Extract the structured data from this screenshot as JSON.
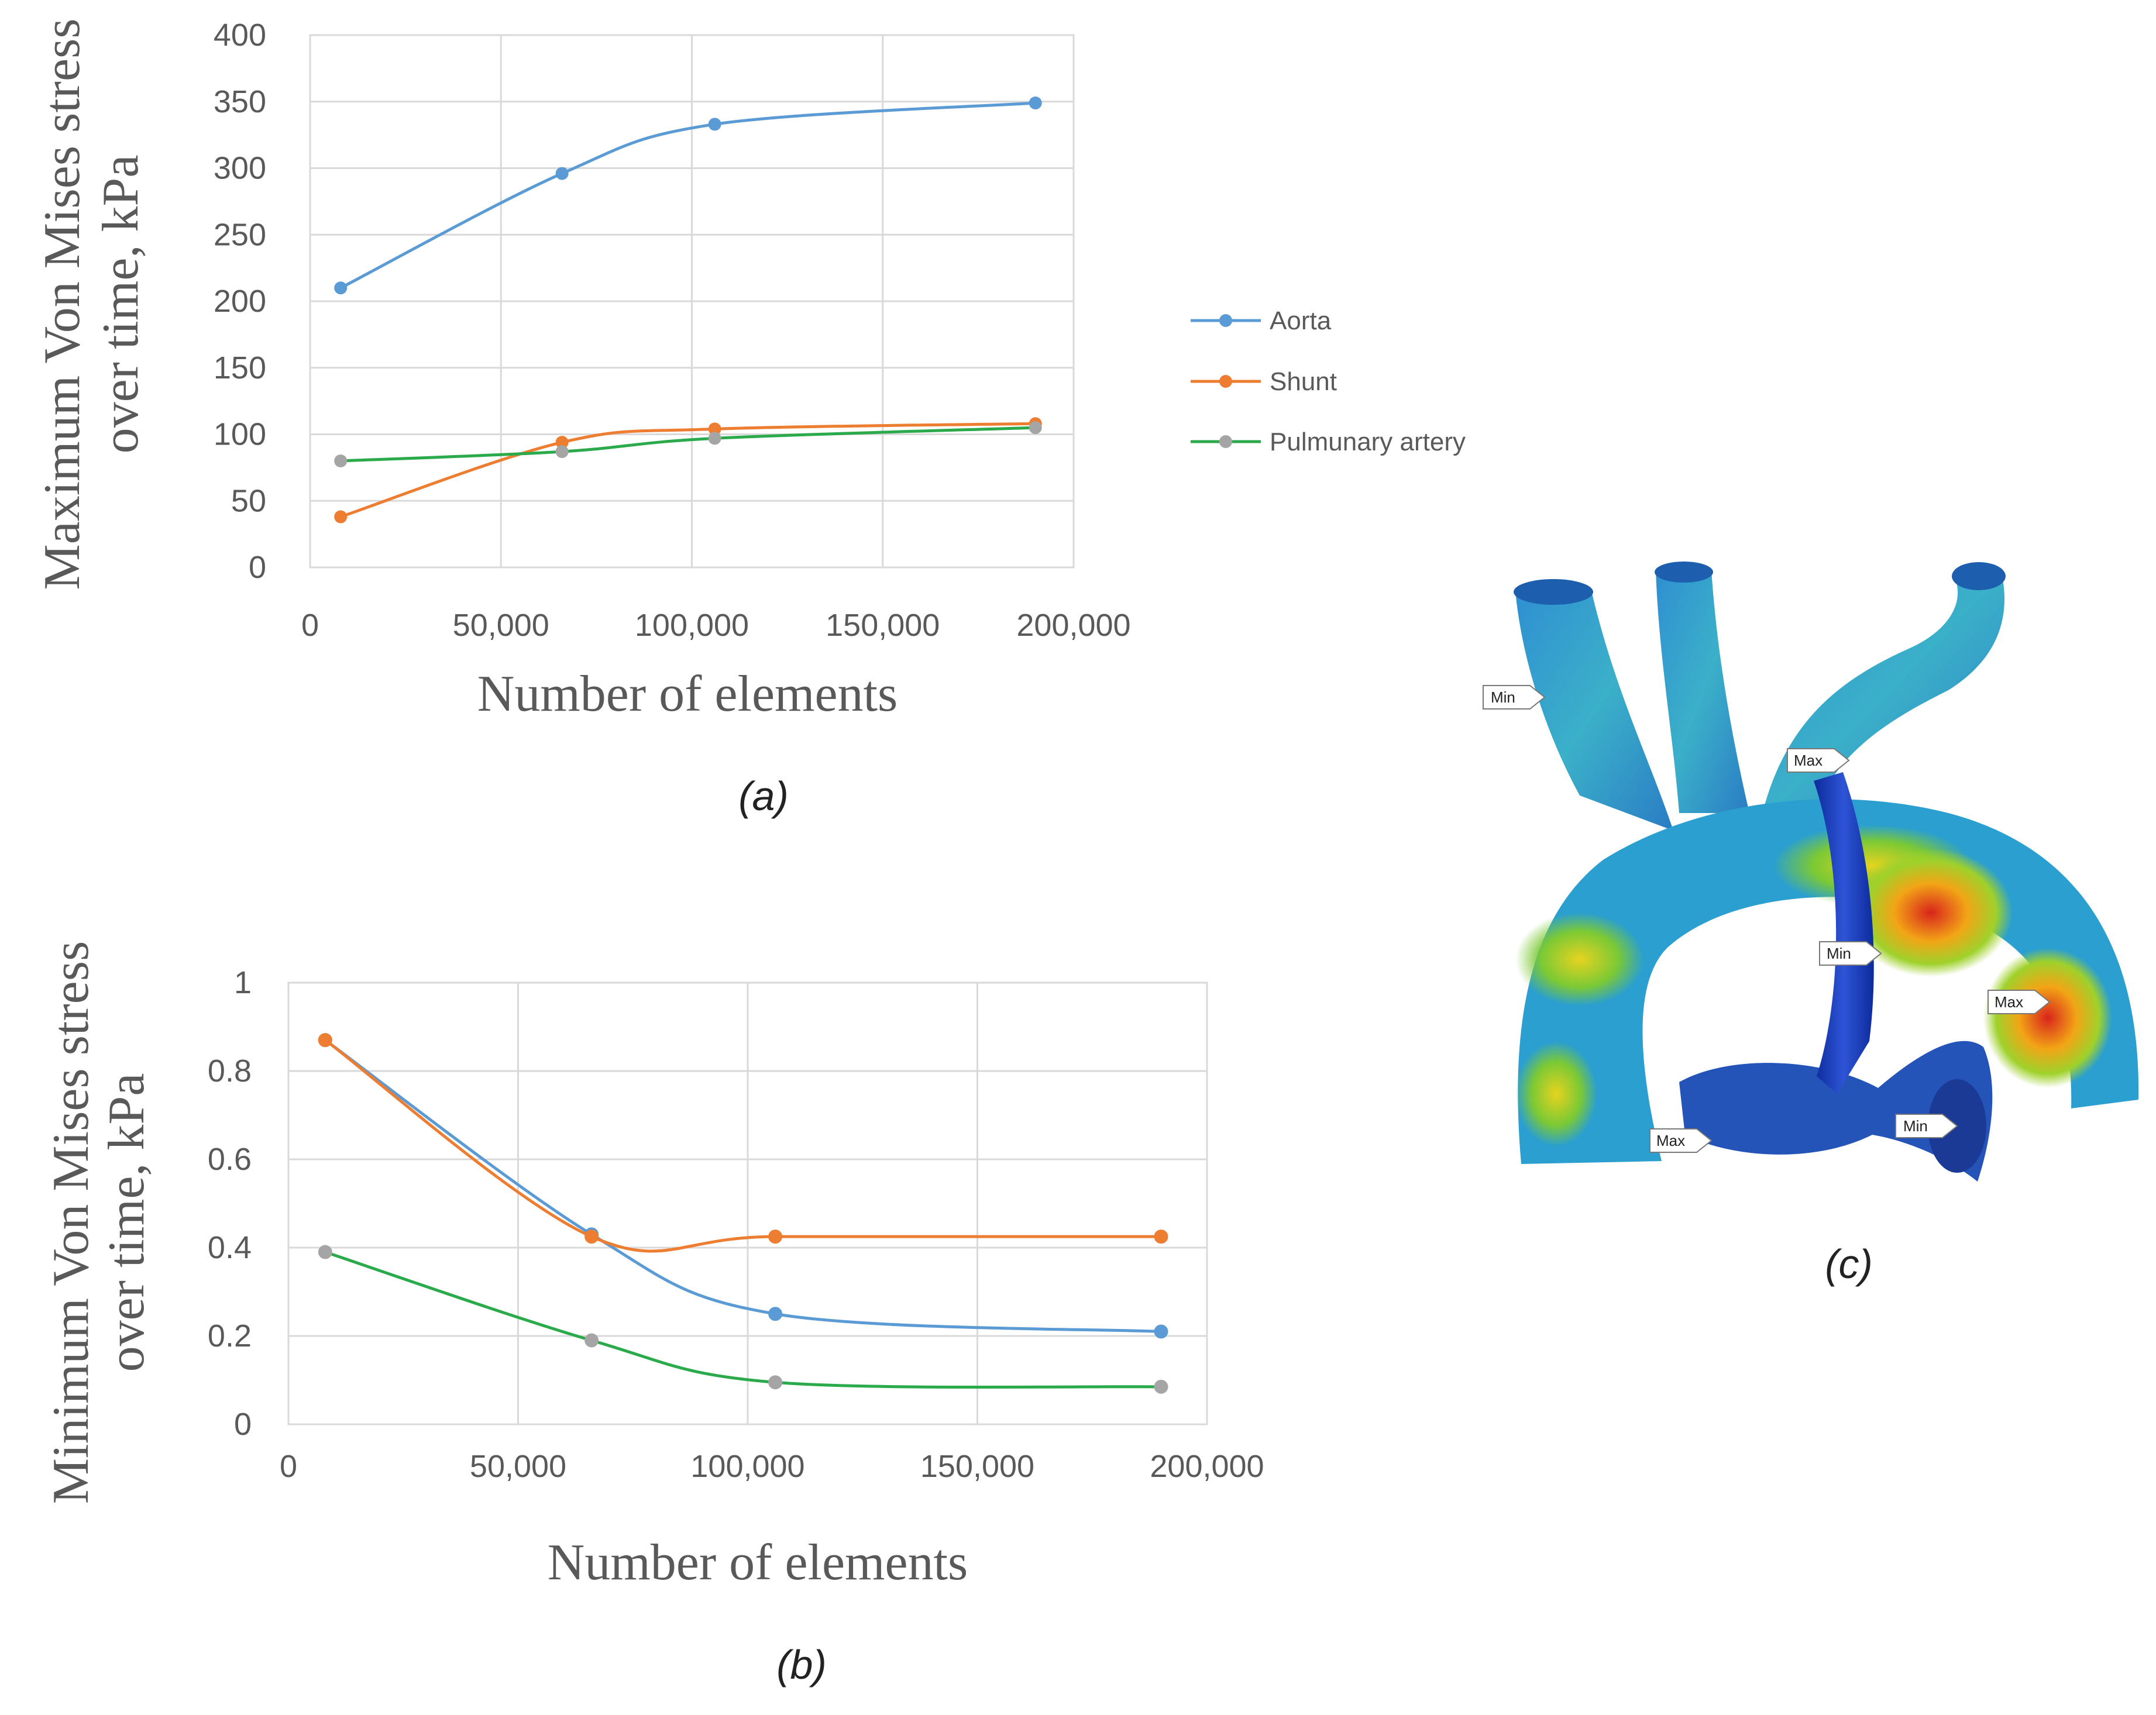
{
  "chart_data": [
    {
      "panel": "(a)",
      "type": "line",
      "title": "",
      "xlabel": "Number of elements",
      "ylabel_lines": [
        "Maximum Von Mises stress",
        "over time, kPa"
      ],
      "xlim": [
        0,
        200000
      ],
      "ylim": [
        0,
        400
      ],
      "xticks": [
        0,
        50000,
        100000,
        150000,
        200000
      ],
      "xtick_labels": [
        "0",
        "50,000",
        "100,000",
        "150,000",
        "200,000"
      ],
      "yticks": [
        0,
        50,
        100,
        150,
        200,
        250,
        300,
        350,
        400
      ],
      "ytick_labels": [
        "0",
        "50",
        "100",
        "150",
        "200",
        "250",
        "300",
        "350",
        "400"
      ],
      "grid": true,
      "legend_placement": "right",
      "series": [
        {
          "name": "Aorta",
          "x": [
            8000,
            66000,
            106000,
            190000
          ],
          "values": [
            210,
            296,
            333,
            349
          ]
        },
        {
          "name": "Shunt",
          "x": [
            8000,
            66000,
            106000,
            190000
          ],
          "values": [
            38,
            94,
            104,
            108
          ]
        },
        {
          "name": "Pulmunary artery",
          "x": [
            8000,
            66000,
            106000,
            190000
          ],
          "values": [
            80,
            87,
            97,
            105
          ]
        }
      ]
    },
    {
      "panel": "(b)",
      "type": "line",
      "title": "",
      "xlabel": "Number of elements",
      "ylabel_lines": [
        "Minimum Von Mises stress",
        "over time, kPa"
      ],
      "xlim": [
        0,
        200000
      ],
      "ylim": [
        0,
        1
      ],
      "xticks": [
        0,
        50000,
        100000,
        150000,
        200000
      ],
      "xtick_labels": [
        "0",
        "50,000",
        "100,000",
        "150,000",
        "200,000"
      ],
      "yticks": [
        0,
        0.2,
        0.4,
        0.6,
        0.8,
        1
      ],
      "ytick_labels": [
        "0",
        "0.2",
        "0.4",
        "0.6",
        "0.8",
        "1"
      ],
      "grid": true,
      "series": [
        {
          "name": "Aorta",
          "x": [
            8000,
            66000,
            106000,
            190000
          ],
          "values": [
            0.87,
            0.43,
            0.25,
            0.21
          ]
        },
        {
          "name": "Shunt",
          "x": [
            8000,
            66000,
            106000,
            190000
          ],
          "values": [
            0.87,
            0.425,
            0.425,
            0.425
          ]
        },
        {
          "name": "Pulmunary artery",
          "x": [
            8000,
            66000,
            106000,
            190000
          ],
          "values": [
            0.39,
            0.19,
            0.095,
            0.085
          ]
        }
      ]
    }
  ],
  "legend": [
    {
      "name": "Aorta",
      "color": "#5b9bd5"
    },
    {
      "name": "Shunt",
      "color": "#ed7d31"
    },
    {
      "name": "Pulmunary artery",
      "color": "#2aaa4a"
    }
  ],
  "colors": {
    "aorta": "#5b9bd5",
    "shunt": "#ed7d31",
    "pulmonary": "#2aaa4a",
    "marker_gray": "#a5a5a5",
    "grid": "#d9d9d9"
  },
  "panel_c": {
    "label": "(c)",
    "callouts": [
      "Min",
      "Max",
      "Min",
      "Max",
      "Max",
      "Min"
    ]
  }
}
